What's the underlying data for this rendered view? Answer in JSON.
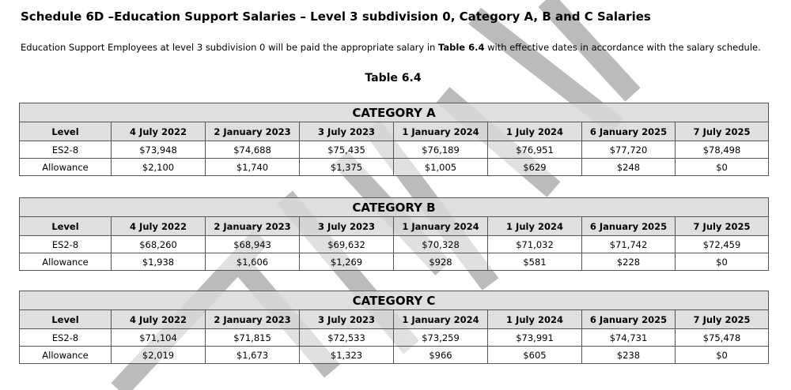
{
  "heading": "Schedule 6D –Education Support Salaries – Level 3 subdivision 0, Category A, B and C Salaries",
  "intro": {
    "before": "Education Support Employees at level 3 subdivision 0 will be paid the appropriate salary in ",
    "bold": "Table 6.4",
    "after": " with effective dates in accordance with the salary schedule."
  },
  "table_caption": "Table 6.4",
  "watermark_color": "#b0b0b0",
  "columns": [
    "Level",
    "4 July 2022",
    "2 January 2023",
    "3 July 2023",
    "1 January 2024",
    "1 July 2024",
    "6 January 2025",
    "7 July 2025"
  ],
  "categories": [
    {
      "title": "CATEGORY A",
      "rows": [
        [
          "ES2-8",
          "$73,948",
          "$74,688",
          "$75,435",
          "$76,189",
          "$76,951",
          "$77,720",
          "$78,498"
        ],
        [
          "Allowance",
          "$2,100",
          "$1,740",
          "$1,375",
          "$1,005",
          "$629",
          "$248",
          "$0"
        ]
      ]
    },
    {
      "title": "CATEGORY B",
      "rows": [
        [
          "ES2-8",
          "$68,260",
          "$68,943",
          "$69,632",
          "$70,328",
          "$71,032",
          "$71,742",
          "$72,459"
        ],
        [
          "Allowance",
          "$1,938",
          "$1,606",
          "$1,269",
          "$928",
          "$581",
          "$228",
          "$0"
        ]
      ]
    },
    {
      "title": "CATEGORY C",
      "rows": [
        [
          "ES2-8",
          "$71,104",
          "$71,815",
          "$72,533",
          "$73,259",
          "$73,991",
          "$74,731",
          "$75,478"
        ],
        [
          "Allowance",
          "$2,019",
          "$1,673",
          "$1,323",
          "$966",
          "$605",
          "$238",
          "$0"
        ]
      ]
    }
  ]
}
